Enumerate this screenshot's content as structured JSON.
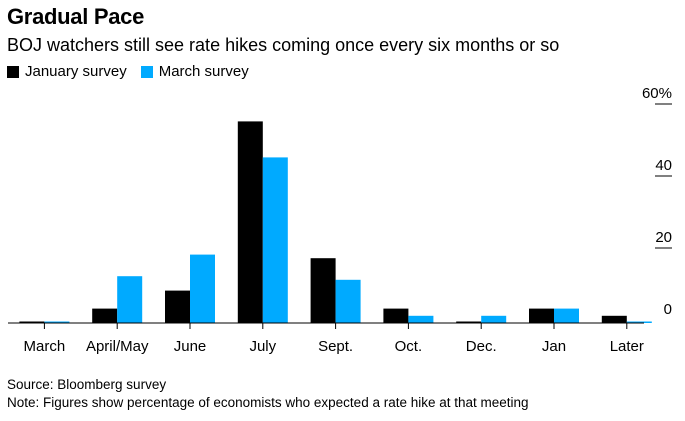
{
  "title": "Gradual Pace",
  "subtitle": "BOJ watchers still see rate hikes coming once every six months or so",
  "source": "Source: Bloomberg survey",
  "note": "Note: Figures show percentage of economists who expected a rate hike at that meeting",
  "colors": {
    "january": "#000000",
    "march": "#00aaff",
    "axis": "#000000",
    "grid": "#cccccc"
  },
  "chart_data": {
    "type": "bar",
    "categories": [
      "March",
      "April/May",
      "June",
      "July",
      "Sept.",
      "Oct.",
      "Dec.",
      "Jan",
      "Later"
    ],
    "series": [
      {
        "name": "January survey",
        "values": [
          0,
          4,
          9,
          56,
          18,
          4,
          0,
          4,
          2
        ]
      },
      {
        "name": "March survey",
        "values": [
          0,
          13,
          19,
          46,
          12,
          2,
          2,
          4,
          0
        ]
      }
    ],
    "yticks": [
      0,
      20,
      40,
      60
    ],
    "ytick_labels": [
      "0",
      "20",
      "40",
      "60%"
    ],
    "ylim": [
      0,
      60
    ],
    "xlabel": "",
    "ylabel": "",
    "legend_position": "top-left",
    "grid": false
  }
}
